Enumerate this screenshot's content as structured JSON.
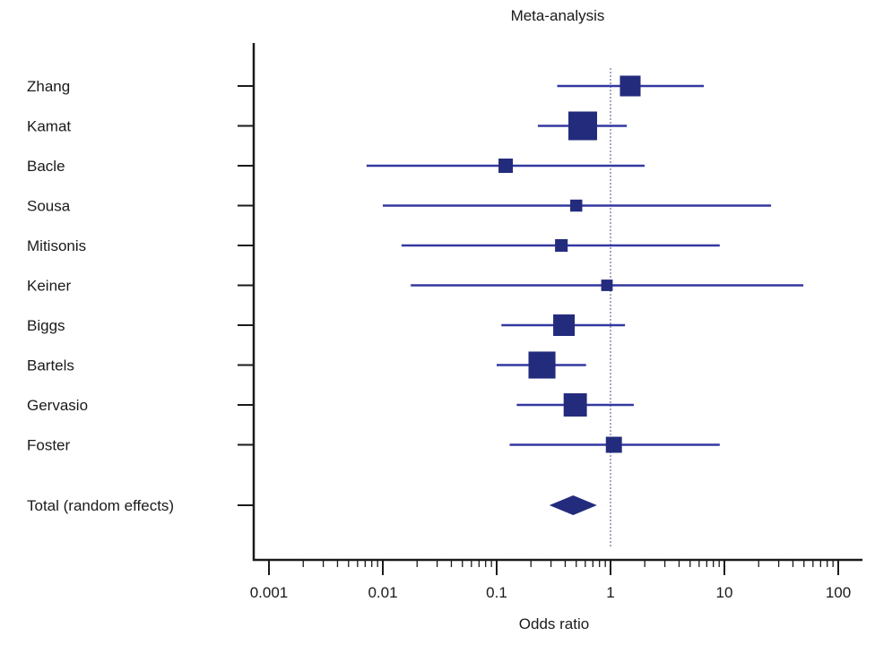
{
  "chart_data": {
    "type": "forest",
    "title": "Meta-analysis",
    "xlabel": "Odds ratio",
    "ylabel": "",
    "xscale": "log",
    "xlim": [
      0.001,
      100
    ],
    "x_ticks": [
      0.001,
      0.01,
      0.1,
      1,
      10,
      100
    ],
    "x_tick_labels": [
      "0.001",
      "0.01",
      "0.1",
      "1",
      "10",
      "100"
    ],
    "reference_line": 1,
    "grid": false,
    "studies": [
      {
        "name": "Zhang",
        "or": 1.49,
        "lower": 0.34,
        "upper": 6.6,
        "weight": 0.72
      },
      {
        "name": "Kamat",
        "or": 0.57,
        "lower": 0.23,
        "upper": 1.39,
        "weight": 1.0
      },
      {
        "name": "Bacle",
        "or": 0.12,
        "lower": 0.0072,
        "upper": 1.99,
        "weight": 0.5
      },
      {
        "name": "Sousa",
        "or": 0.5,
        "lower": 0.01,
        "upper": 25.7,
        "weight": 0.42
      },
      {
        "name": "Mitisonis",
        "or": 0.37,
        "lower": 0.0146,
        "upper": 9.1,
        "weight": 0.44
      },
      {
        "name": "Keiner",
        "or": 0.93,
        "lower": 0.0176,
        "upper": 49.4,
        "weight": 0.4
      },
      {
        "name": "Biggs",
        "or": 0.39,
        "lower": 0.11,
        "upper": 1.34,
        "weight": 0.75
      },
      {
        "name": "Bartels",
        "or": 0.25,
        "lower": 0.1,
        "upper": 0.61,
        "weight": 0.94
      },
      {
        "name": "Gervasio",
        "or": 0.49,
        "lower": 0.15,
        "upper": 1.6,
        "weight": 0.81
      },
      {
        "name": "Foster",
        "or": 1.07,
        "lower": 0.13,
        "upper": 9.1,
        "weight": 0.56
      }
    ],
    "total": {
      "name": "Total (random effects)",
      "or": 0.47,
      "lower": 0.29,
      "upper": 0.76
    },
    "colors": {
      "marker": "#232b7d",
      "line": "#3338a0",
      "axis": "#1a1a1a",
      "reference": "#6b6f9a"
    }
  }
}
